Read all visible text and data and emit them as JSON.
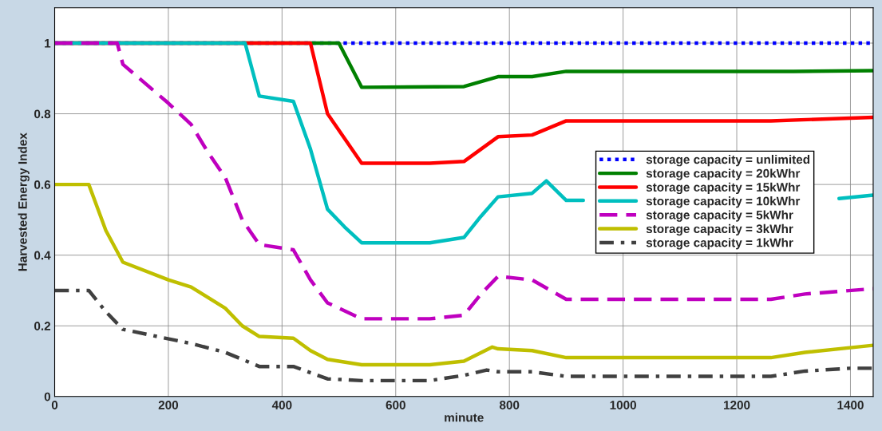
{
  "chart_data": {
    "type": "line",
    "xlabel": "minute",
    "ylabel": "Harvested Energy Index",
    "xlim": [
      0,
      1440
    ],
    "xticks": [
      0,
      200,
      400,
      600,
      800,
      1000,
      1200,
      1400
    ],
    "ylim": [
      0,
      1.1
    ],
    "yticks": [
      0,
      0.2,
      0.4,
      0.6,
      0.8,
      1
    ],
    "grid": true,
    "legend": "center right",
    "series": [
      {
        "name": "storage capacity = unlimited",
        "color": "#0000ff",
        "line_style": "dotted",
        "x": [
          0,
          1440
        ],
        "values": [
          1,
          1
        ]
      },
      {
        "name": "storage capacity = 20kWhr",
        "color": "#008000",
        "line_style": "solid",
        "x": [
          0,
          500,
          540,
          720,
          780,
          840,
          900,
          1300,
          1440
        ],
        "values": [
          1,
          1,
          0.875,
          0.877,
          0.905,
          0.905,
          0.92,
          0.92,
          0.922
        ]
      },
      {
        "name": "storage capacity = 15kWhr",
        "color": "#ff0000",
        "line_style": "solid",
        "x": [
          0,
          450,
          480,
          510,
          540,
          660,
          720,
          750,
          780,
          840,
          900,
          1260,
          1440
        ],
        "values": [
          1,
          1,
          0.8,
          0.73,
          0.66,
          0.66,
          0.665,
          0.7,
          0.735,
          0.74,
          0.78,
          0.78,
          0.79
        ]
      },
      {
        "name": "storage capacity = 10kWhr",
        "color": "#00bfbf",
        "line_style": "solid",
        "x": [
          0,
          335,
          360,
          420,
          450,
          480,
          510,
          540,
          660,
          720,
          750,
          780,
          840,
          865,
          900,
          930,
          1150,
          1380,
          1440
        ],
        "values": [
          1,
          1,
          0.85,
          0.835,
          0.7,
          0.53,
          0.48,
          0.435,
          0.435,
          0.45,
          0.51,
          0.565,
          0.575,
          0.61,
          0.555,
          0.555,
          null,
          0.56,
          0.57
        ]
      },
      {
        "name": "storage capacity = 5kWhr",
        "color": "#bf00bf",
        "line_style": "dashed",
        "x": [
          0,
          110,
          120,
          200,
          240,
          270,
          300,
          330,
          360,
          420,
          450,
          480,
          540,
          660,
          720,
          750,
          780,
          840,
          900,
          1260,
          1320,
          1440
        ],
        "values": [
          1,
          1,
          0.94,
          0.83,
          0.77,
          0.69,
          0.62,
          0.5,
          0.43,
          0.415,
          0.33,
          0.265,
          0.22,
          0.22,
          0.23,
          0.29,
          0.34,
          0.33,
          0.275,
          0.275,
          0.29,
          0.305
        ]
      },
      {
        "name": "storage capacity = 3kWhr",
        "color": "#bfbf00",
        "line_style": "solid",
        "x": [
          0,
          60,
          90,
          120,
          200,
          240,
          300,
          330,
          360,
          420,
          450,
          480,
          540,
          660,
          720,
          770,
          780,
          840,
          900,
          1260,
          1320,
          1440
        ],
        "values": [
          0.6,
          0.6,
          0.47,
          0.38,
          0.33,
          0.31,
          0.25,
          0.2,
          0.17,
          0.165,
          0.13,
          0.105,
          0.09,
          0.09,
          0.1,
          0.14,
          0.135,
          0.13,
          0.11,
          0.11,
          0.125,
          0.145
        ]
      },
      {
        "name": "storage capacity = 1kWhr",
        "color": "#404040",
        "line_style": "dashdot",
        "x": [
          0,
          60,
          90,
          120,
          240,
          300,
          360,
          420,
          480,
          540,
          660,
          720,
          760,
          780,
          840,
          900,
          1260,
          1320,
          1400,
          1440
        ],
        "values": [
          0.3,
          0.3,
          0.24,
          0.19,
          0.15,
          0.125,
          0.085,
          0.085,
          0.05,
          0.045,
          0.045,
          0.06,
          0.075,
          0.07,
          0.07,
          0.057,
          0.057,
          0.072,
          0.08,
          0.08
        ]
      }
    ]
  }
}
